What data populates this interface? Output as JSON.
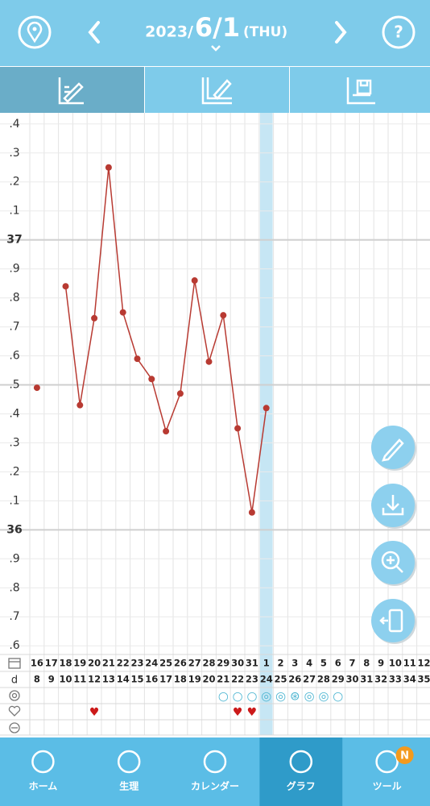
{
  "header": {
    "year": "2023/",
    "date": "6/1",
    "weekday": "(THU)"
  },
  "chart_data": {
    "type": "line",
    "categories": [
      "16",
      "17",
      "18",
      "19",
      "20",
      "21",
      "22",
      "23",
      "24",
      "25",
      "26",
      "27",
      "28",
      "29",
      "30",
      "31",
      "1",
      "2",
      "3",
      "4",
      "5",
      "6",
      "7",
      "8",
      "9",
      "10",
      "11",
      "12"
    ],
    "category_colors": [
      "#222",
      "#222",
      "#222",
      "#222",
      "#2f9bd6",
      "#e0453e",
      "#222",
      "#222",
      "#222",
      "#222",
      "#222",
      "#2f9bd6",
      "#e0453e",
      "#222",
      "#222",
      "#222",
      "#222",
      "#222",
      "#2f9bd6",
      "#e0453e",
      "#222",
      "#222",
      "#222",
      "#222",
      "#222",
      "#2f9bd6",
      "#e0453e",
      "#222"
    ],
    "cycle_label": "d",
    "cycle_days": [
      "8",
      "9",
      "10",
      "11",
      "12",
      "13",
      "14",
      "15",
      "16",
      "17",
      "18",
      "19",
      "20",
      "21",
      "22",
      "23",
      "24",
      "25",
      "26",
      "27",
      "28",
      "29",
      "30",
      "31",
      "32",
      "33",
      "34",
      "35"
    ],
    "series": [
      {
        "color": "#b83a32",
        "values": [
          36.49,
          null,
          36.84,
          36.43,
          36.73,
          37.25,
          36.75,
          36.59,
          36.52,
          36.34,
          36.47,
          36.86,
          36.58,
          36.74,
          36.35,
          36.06,
          36.42,
          null,
          null,
          null,
          null,
          null,
          null,
          null,
          null,
          null,
          null,
          null
        ]
      }
    ],
    "ylim": [
      35.57,
      37.43
    ],
    "yticks": [
      {
        "value": 35.6,
        "label": ".6"
      },
      {
        "value": 35.7,
        "label": ".7"
      },
      {
        "value": 35.8,
        "label": ".8"
      },
      {
        "value": 35.9,
        "label": ".9"
      },
      36,
      {
        "value": 36.1,
        "label": ".1"
      },
      {
        "value": 36.2,
        "label": ".2"
      },
      {
        "value": 36.3,
        "label": ".3"
      },
      {
        "value": 36.4,
        "label": ".4"
      },
      {
        "value": 36.5,
        "label": ".5"
      },
      {
        "value": 36.6,
        "label": ".6"
      },
      {
        "value": 36.7,
        "label": ".7"
      },
      {
        "value": 36.8,
        "label": ".8"
      },
      {
        "value": 36.9,
        "label": ".9"
      },
      37,
      {
        "value": 37.1,
        "label": ".1"
      },
      {
        "value": 37.2,
        "label": ".2"
      },
      {
        "value": 37.3,
        "label": ".3"
      },
      {
        "value": 37.4,
        "label": ".4"
      }
    ],
    "major_ticks": [
      36,
      36.5,
      37
    ],
    "today_index": 16,
    "test_marks": [
      null,
      null,
      null,
      null,
      null,
      null,
      null,
      null,
      null,
      null,
      null,
      null,
      null,
      "○",
      "○",
      "○",
      "◎",
      "◎",
      "⊛",
      "◎",
      "◎",
      "○",
      null,
      null,
      null,
      null,
      null,
      null
    ],
    "heart_marks": [
      null,
      null,
      null,
      null,
      "♥",
      null,
      null,
      null,
      null,
      null,
      null,
      null,
      null,
      null,
      "♥",
      "♥",
      null,
      null,
      null,
      null,
      null,
      null,
      null,
      null,
      null,
      null,
      null,
      null
    ]
  },
  "nav": {
    "items": [
      "ホーム",
      "生理",
      "カレンダー",
      "グラフ",
      "ツール"
    ],
    "active": 3,
    "badge": "N"
  }
}
